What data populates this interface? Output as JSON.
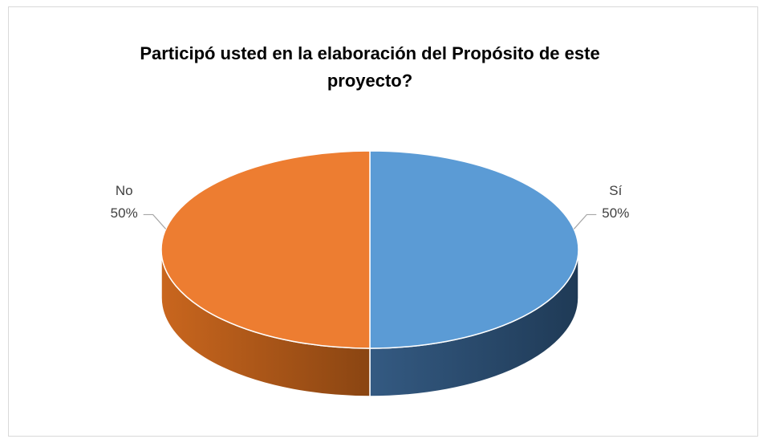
{
  "chart_data": {
    "type": "pie",
    "title": "Participó usted en la elaboración del Propósito de este proyecto?",
    "categories": [
      "Sí",
      "No"
    ],
    "values": [
      50,
      50
    ],
    "value_labels": [
      "50%",
      "50%"
    ],
    "colors": [
      "#5b9bd5",
      "#ed7d31"
    ]
  }
}
